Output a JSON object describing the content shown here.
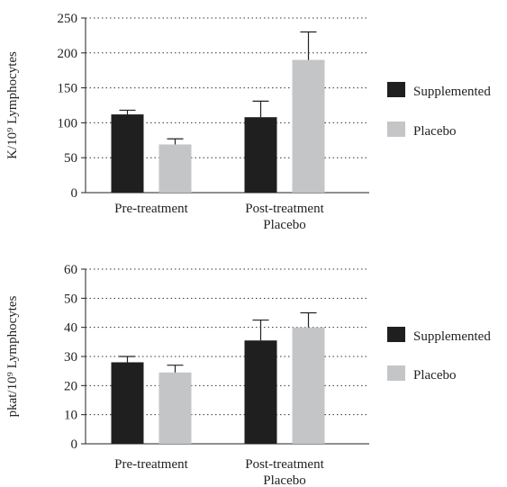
{
  "colors": {
    "supplemented": "#1f1f1f",
    "placebo": "#c4c5c7",
    "axis": "#222222",
    "grid": "#333333"
  },
  "chart_data": [
    {
      "type": "bar",
      "ylabel": "K/10⁹ Lymphocytes",
      "ylim": [
        0,
        250
      ],
      "yticks": [
        0,
        50,
        100,
        150,
        200,
        250
      ],
      "grid": "dotted horizontal",
      "legend_placement": "right",
      "categories": [
        [
          "Pre-treatment"
        ],
        [
          "Post-treatment",
          "Placebo"
        ]
      ],
      "series": [
        {
          "name": "Supplemented",
          "color": "#1f1f1f",
          "values": [
            112,
            108
          ],
          "error_upper": [
            118,
            131
          ]
        },
        {
          "name": "Placebo",
          "color": "#c4c5c7",
          "values": [
            69,
            190
          ],
          "error_upper": [
            77,
            230
          ]
        }
      ]
    },
    {
      "type": "bar",
      "ylabel": "pkat/10⁹ Lymphocytes",
      "ylim": [
        0,
        60
      ],
      "ytick_labels": [
        "0",
        "10",
        "20",
        "30",
        "40",
        "50",
        "60"
      ],
      "grid": "dotted horizontal",
      "legend_placement": "right",
      "categories": [
        [
          "Pre-treatment"
        ],
        [
          "Post-treatment",
          "Placebo"
        ]
      ],
      "series": [
        {
          "name": "Supplemented",
          "color": "#1f1f1f",
          "values": [
            28,
            35.5
          ],
          "error_upper": [
            30,
            42.5
          ]
        },
        {
          "name": "Placebo",
          "color": "#c4c5c7",
          "values": [
            24.5,
            40
          ],
          "error_upper": [
            27,
            45
          ]
        }
      ]
    }
  ]
}
